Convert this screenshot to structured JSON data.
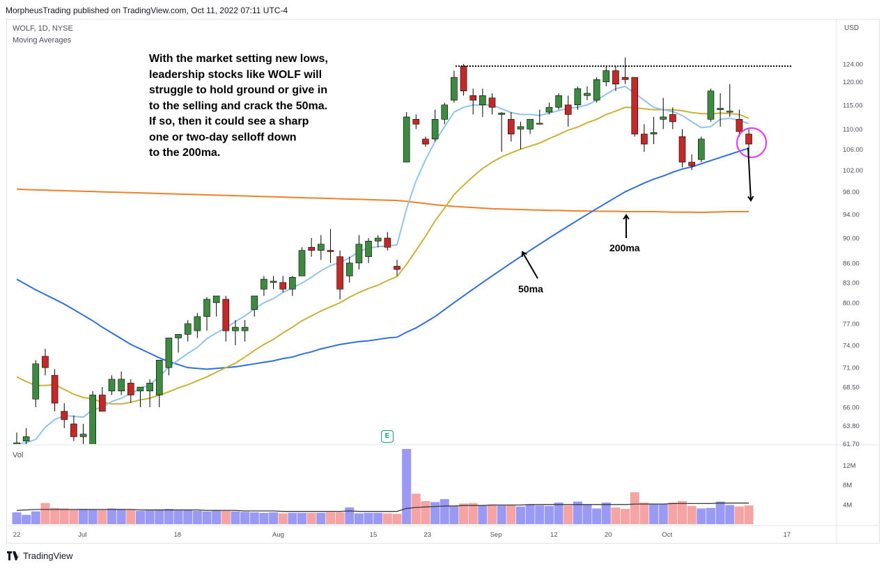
{
  "header": {
    "published": "MorpheusTrading published on TradingView.com, Oct 11, 2022 07:11 UTC-4"
  },
  "symbol_line": "WOLF, 1D, NYSE",
  "indicator_line": "Moving Averages",
  "currency": "USD",
  "annotation_lines": [
    "With the market setting new lows,",
    "leadership stocks like WOLF will",
    "struggle to hold ground or give in",
    "to the selling and crack the 50ma.",
    "If so, then it could see a sharp",
    "one or two-day selloff down",
    "to the 200ma."
  ],
  "labels": {
    "ma50": "50ma",
    "ma200": "200ma",
    "earnings": "E",
    "volume": "Vol"
  },
  "footer": {
    "brand": "TradingView"
  },
  "colors": {
    "up": "#3d8b40",
    "down": "#c62828",
    "ma10": "#90c4ec",
    "ma20": "#c9b23a",
    "ma50": "#2f6fdc",
    "ma200": "#f07f26",
    "vol_up": "#9a9af5",
    "vol_down": "#f5a3a3",
    "highlight": "#e040fb"
  },
  "chart_data": {
    "type": "candlestick",
    "symbol": "WOLF",
    "interval": "1D",
    "exchange": "NYSE",
    "y_ticks": [
      "124.00",
      "120.00",
      "115.00",
      "110.00",
      "106.00",
      "102.00",
      "98.00",
      "94.00",
      "90.00",
      "86.00",
      "83.00",
      "80.00",
      "77.00",
      "74.00",
      "71.00",
      "68.50",
      "66.00",
      "63.80",
      "61.70"
    ],
    "volume_ticks": [
      "12M",
      "8M",
      "4M"
    ],
    "x_ticks": [
      "22",
      "Jul",
      "18",
      "Aug",
      "15",
      "23",
      "Sep",
      "12",
      "20",
      "Oct",
      "17"
    ],
    "resistance_level": 124.0,
    "candles": [
      {
        "date": "2022-06-21",
        "o": 61.5,
        "h": 63,
        "l": 60.5,
        "c": 61.8
      },
      {
        "date": "2022-06-22",
        "o": 62,
        "h": 63.5,
        "l": 61,
        "c": 62.5
      },
      {
        "date": "2022-06-23",
        "o": 67,
        "h": 72,
        "l": 66,
        "c": 71.5
      },
      {
        "date": "2022-06-24",
        "o": 72.5,
        "h": 73.5,
        "l": 70,
        "c": 71
      },
      {
        "date": "2022-06-27",
        "o": 70,
        "h": 70.8,
        "l": 65.5,
        "c": 66.5
      },
      {
        "date": "2022-06-28",
        "o": 65.5,
        "h": 66.5,
        "l": 63.5,
        "c": 64.5
      },
      {
        "date": "2022-06-29",
        "o": 64,
        "h": 65,
        "l": 62,
        "c": 62.5
      },
      {
        "date": "2022-06-30",
        "o": 62.5,
        "h": 64,
        "l": 60,
        "c": 62.8
      },
      {
        "date": "2022-07-01",
        "o": 61,
        "h": 68,
        "l": 61,
        "c": 67.5
      },
      {
        "date": "2022-07-05",
        "o": 67.5,
        "h": 68.5,
        "l": 65.5,
        "c": 65.5
      },
      {
        "date": "2022-07-06",
        "o": 68,
        "h": 70,
        "l": 67.5,
        "c": 69.5
      },
      {
        "date": "2022-07-07",
        "o": 68,
        "h": 70.5,
        "l": 67.5,
        "c": 69.5
      },
      {
        "date": "2022-07-08",
        "o": 69,
        "h": 69.5,
        "l": 66.5,
        "c": 67.5
      },
      {
        "date": "2022-07-11",
        "o": 68,
        "h": 68.5,
        "l": 66,
        "c": 68.5
      },
      {
        "date": "2022-07-12",
        "o": 68,
        "h": 69.5,
        "l": 66,
        "c": 69
      },
      {
        "date": "2022-07-13",
        "o": 67.5,
        "h": 72,
        "l": 66,
        "c": 72
      },
      {
        "date": "2022-07-14",
        "o": 71,
        "h": 75,
        "l": 70,
        "c": 75
      },
      {
        "date": "2022-07-15",
        "o": 75,
        "h": 75.5,
        "l": 73,
        "c": 75.5
      },
      {
        "date": "2022-07-18",
        "o": 75.5,
        "h": 77.5,
        "l": 74.5,
        "c": 77
      },
      {
        "date": "2022-07-19",
        "o": 76,
        "h": 78.5,
        "l": 75,
        "c": 78
      },
      {
        "date": "2022-07-20",
        "o": 78,
        "h": 80.8,
        "l": 76,
        "c": 80.5
      },
      {
        "date": "2022-07-21",
        "o": 80,
        "h": 81,
        "l": 78,
        "c": 81
      },
      {
        "date": "2022-07-22",
        "o": 80.5,
        "h": 81,
        "l": 74.5,
        "c": 76
      },
      {
        "date": "2022-07-25",
        "o": 76,
        "h": 77.5,
        "l": 74,
        "c": 76.5
      },
      {
        "date": "2022-07-26",
        "o": 76,
        "h": 77.5,
        "l": 74.5,
        "c": 76.5
      },
      {
        "date": "2022-07-27",
        "o": 79,
        "h": 81,
        "l": 78,
        "c": 81
      },
      {
        "date": "2022-07-28",
        "o": 82,
        "h": 84,
        "l": 81,
        "c": 83.5
      },
      {
        "date": "2022-07-29",
        "o": 83,
        "h": 84,
        "l": 82,
        "c": 83.2
      },
      {
        "date": "2022-08-01",
        "o": 83,
        "h": 84,
        "l": 81.5,
        "c": 82
      },
      {
        "date": "2022-08-02",
        "o": 82,
        "h": 84,
        "l": 81,
        "c": 83.8
      },
      {
        "date": "2022-08-03",
        "o": 84,
        "h": 88.5,
        "l": 84,
        "c": 88
      },
      {
        "date": "2022-08-04",
        "o": 88.5,
        "h": 90,
        "l": 87,
        "c": 88
      },
      {
        "date": "2022-08-05",
        "o": 88,
        "h": 90.5,
        "l": 86.5,
        "c": 89
      },
      {
        "date": "2022-08-08",
        "o": 88,
        "h": 91.5,
        "l": 86,
        "c": 87.8
      },
      {
        "date": "2022-08-09",
        "o": 87,
        "h": 88,
        "l": 80.5,
        "c": 82
      },
      {
        "date": "2022-08-10",
        "o": 84,
        "h": 87,
        "l": 83,
        "c": 86
      },
      {
        "date": "2022-08-11",
        "o": 86,
        "h": 90.5,
        "l": 85,
        "c": 89
      },
      {
        "date": "2022-08-12",
        "o": 87,
        "h": 90,
        "l": 86,
        "c": 89.5
      },
      {
        "date": "2022-08-15",
        "o": 89.5,
        "h": 90.5,
        "l": 88.5,
        "c": 90
      },
      {
        "date": "2022-08-16",
        "o": 90,
        "h": 91,
        "l": 88,
        "c": 88.5
      },
      {
        "date": "2022-08-17",
        "o": 85.5,
        "h": 86.5,
        "l": 84,
        "c": 85
      },
      {
        "date": "2022-08-18",
        "o": 103.5,
        "h": 113.5,
        "l": 103.5,
        "c": 112.5
      },
      {
        "date": "2022-08-19",
        "o": 112,
        "h": 113,
        "l": 110,
        "c": 111
      },
      {
        "date": "2022-08-22",
        "o": 108,
        "h": 108.5,
        "l": 106.5,
        "c": 107
      },
      {
        "date": "2022-08-23",
        "o": 108,
        "h": 114,
        "l": 107.5,
        "c": 112
      },
      {
        "date": "2022-08-24",
        "o": 112,
        "h": 115.5,
        "l": 111,
        "c": 115
      },
      {
        "date": "2022-08-25",
        "o": 116,
        "h": 122.5,
        "l": 115.5,
        "c": 121
      },
      {
        "date": "2022-08-26",
        "o": 123.5,
        "h": 124,
        "l": 117,
        "c": 118
      },
      {
        "date": "2022-08-29",
        "o": 117,
        "h": 118.5,
        "l": 113,
        "c": 116
      },
      {
        "date": "2022-08-30",
        "o": 115,
        "h": 118.5,
        "l": 112.5,
        "c": 117
      },
      {
        "date": "2022-08-31",
        "o": 116.5,
        "h": 117.5,
        "l": 113,
        "c": 114.5
      },
      {
        "date": "2022-09-01",
        "o": 113,
        "h": 113.5,
        "l": 105.5,
        "c": 113.3
      },
      {
        "date": "2022-09-02",
        "o": 112,
        "h": 113.5,
        "l": 107.5,
        "c": 109
      },
      {
        "date": "2022-09-06",
        "o": 110,
        "h": 111.5,
        "l": 106,
        "c": 110.5
      },
      {
        "date": "2022-09-07",
        "o": 110,
        "h": 112,
        "l": 109,
        "c": 112
      },
      {
        "date": "2022-09-08",
        "o": 111,
        "h": 114,
        "l": 111,
        "c": 111.2
      },
      {
        "date": "2022-09-09",
        "o": 113.5,
        "h": 115.5,
        "l": 113,
        "c": 114.5
      },
      {
        "date": "2022-09-12",
        "o": 114.5,
        "h": 117.5,
        "l": 114,
        "c": 117
      },
      {
        "date": "2022-09-13",
        "o": 115,
        "h": 117,
        "l": 110.5,
        "c": 113
      },
      {
        "date": "2022-09-14",
        "o": 115,
        "h": 119,
        "l": 114,
        "c": 118.5
      },
      {
        "date": "2022-09-15",
        "o": 117,
        "h": 119,
        "l": 116,
        "c": 117.5
      },
      {
        "date": "2022-09-16",
        "o": 116,
        "h": 121,
        "l": 115.5,
        "c": 120.5
      },
      {
        "date": "2022-09-19",
        "o": 120,
        "h": 123.5,
        "l": 119,
        "c": 122.5
      },
      {
        "date": "2022-09-20",
        "o": 122.5,
        "h": 123.5,
        "l": 118,
        "c": 119.5
      },
      {
        "date": "2022-09-21",
        "o": 121,
        "h": 125.5,
        "l": 119.5,
        "c": 120.5
      },
      {
        "date": "2022-09-22",
        "o": 121,
        "h": 121,
        "l": 108.5,
        "c": 109
      },
      {
        "date": "2022-09-23",
        "o": 109,
        "h": 111,
        "l": 105.5,
        "c": 107
      },
      {
        "date": "2022-09-26",
        "o": 109,
        "h": 112.5,
        "l": 107,
        "c": 109.3
      },
      {
        "date": "2022-09-27",
        "o": 112,
        "h": 116.5,
        "l": 110,
        "c": 112.5
      },
      {
        "date": "2022-09-28",
        "o": 113,
        "h": 114.5,
        "l": 110,
        "c": 111.5
      },
      {
        "date": "2022-09-29",
        "o": 108.5,
        "h": 110,
        "l": 102.5,
        "c": 103.5
      },
      {
        "date": "2022-09-30",
        "o": 103.5,
        "h": 105,
        "l": 102,
        "c": 102.8
      },
      {
        "date": "2022-10-03",
        "o": 104,
        "h": 108.5,
        "l": 103.5,
        "c": 108
      },
      {
        "date": "2022-10-04",
        "o": 112,
        "h": 118.5,
        "l": 111.5,
        "c": 118
      },
      {
        "date": "2022-10-05",
        "o": 114,
        "h": 117.5,
        "l": 110.5,
        "c": 114.3
      },
      {
        "date": "2022-10-06",
        "o": 113.5,
        "h": 119.5,
        "l": 112.5,
        "c": 113.7
      },
      {
        "date": "2022-10-07",
        "o": 112,
        "h": 114,
        "l": 108.5,
        "c": 109.5
      },
      {
        "date": "2022-10-10",
        "o": 109,
        "h": 110,
        "l": 104.5,
        "c": 107
      }
    ],
    "ma10": [
      61.7,
      61.8,
      62.2,
      63.6,
      64.5,
      65,
      64.9,
      64.8,
      65.7,
      66,
      66.7,
      67.1,
      67.7,
      68.3,
      68.8,
      69.8,
      71.1,
      72,
      72.9,
      73.7,
      74.9,
      75.7,
      76.4,
      77.3,
      78.1,
      79.1,
      80,
      80.6,
      81.5,
      82.2,
      82.9,
      83.8,
      84.8,
      85.6,
      86.1,
      86.8,
      87.8,
      88.4,
      88.6,
      88.7,
      88.9,
      95,
      100,
      104,
      107.5,
      110.5,
      113.5,
      114.5,
      115,
      115,
      115,
      114.2,
      113.4,
      113,
      113,
      112.8,
      113.3,
      113.8,
      114.3,
      114.5,
      115,
      116,
      117.3,
      118.5,
      119,
      117.5,
      116,
      114.5,
      114,
      113.6,
      112.8,
      111.5,
      110.3,
      110.5,
      112,
      112.2,
      111.8,
      111.1
    ],
    "ma20": [
      69.8,
      69.2,
      68.7,
      68.7,
      68.8,
      68.2,
      67.6,
      67.2,
      67,
      66.6,
      66.4,
      66.4,
      66.6,
      66.9,
      67.1,
      67.5,
      67.9,
      68.4,
      68.8,
      69.3,
      69.8,
      70.4,
      71,
      71.6,
      72.4,
      73.3,
      74.1,
      74.8,
      75.7,
      76.5,
      77.4,
      78.1,
      78.8,
      79.4,
      80,
      80.8,
      81.5,
      82.1,
      82.6,
      83.3,
      83.9,
      85.8,
      88,
      90.3,
      92.9,
      95.1,
      97.5,
      99.2,
      100.8,
      102.3,
      103.5,
      104.5,
      105.3,
      106,
      106.6,
      107.2,
      108.1,
      108.9,
      109.8,
      110.4,
      111.3,
      112,
      113,
      113.7,
      114.5,
      114.4,
      114.2,
      114,
      114,
      114,
      113.8,
      113.4,
      113.2,
      113.1,
      113.3,
      113.2,
      113,
      112.2
    ],
    "ma50": [
      83.5,
      82.7,
      81.9,
      81.2,
      80.5,
      79.8,
      79,
      78.2,
      77.4,
      76.5,
      75.7,
      74.9,
      74.1,
      73.5,
      72.9,
      72.3,
      71.8,
      71.4,
      71,
      70.9,
      70.8,
      70.9,
      71,
      71.1,
      71.3,
      71.5,
      71.7,
      71.9,
      72.2,
      72.4,
      72.8,
      73.1,
      73.5,
      73.8,
      74.1,
      74.3,
      74.5,
      74.6,
      74.8,
      75,
      75.1,
      75.8,
      76.4,
      77.2,
      78,
      79,
      80,
      81,
      82,
      83,
      84,
      85,
      86,
      87,
      88,
      89,
      90,
      91,
      92,
      93,
      94,
      95,
      96,
      97,
      98,
      98.8,
      99.6,
      100.3,
      100.9,
      101.6,
      102.2,
      102.6,
      103.2,
      103.8,
      104.4,
      105,
      105.6,
      106.2
    ],
    "ma200": [
      98.5,
      98.4,
      98.35,
      98.3,
      98.25,
      98.2,
      98.15,
      98.1,
      98.05,
      98,
      97.95,
      97.9,
      97.85,
      97.8,
      97.75,
      97.7,
      97.65,
      97.6,
      97.55,
      97.5,
      97.45,
      97.4,
      97.35,
      97.3,
      97.25,
      97.2,
      97.15,
      97.1,
      97.05,
      97,
      96.95,
      96.9,
      96.85,
      96.8,
      96.75,
      96.7,
      96.65,
      96.6,
      96.55,
      96.5,
      96.45,
      96.3,
      96.1,
      95.9,
      95.7,
      95.55,
      95.4,
      95.3,
      95.2,
      95.1,
      95,
      94.95,
      94.9,
      94.85,
      94.8,
      94.75,
      94.7,
      94.7,
      94.65,
      94.6,
      94.6,
      94.55,
      94.55,
      94.55,
      94.5,
      94.5,
      94.5,
      94.5,
      94.45,
      94.4,
      94.4,
      94.4,
      94.35,
      94.4,
      94.45,
      94.5,
      94.5,
      94.5
    ],
    "volume": [
      2.4,
      1.9,
      2.6,
      4.3,
      3.3,
      3.2,
      2.9,
      3.1,
      3,
      2.9,
      3.2,
      3.1,
      2.9,
      2.7,
      2.8,
      3,
      3.1,
      2.8,
      2.9,
      2.7,
      2.6,
      2.8,
      2.7,
      2.6,
      2.5,
      2.4,
      2.3,
      2.4,
      2.2,
      2.3,
      2.3,
      2.3,
      2.3,
      2.4,
      2.4,
      3.4,
      2.2,
      2.3,
      2.3,
      2.2,
      2.1,
      15.6,
      6.2,
      4.7,
      4.5,
      5.1,
      3.6,
      4.2,
      4.3,
      3.9,
      4,
      3.8,
      3.9,
      3.6,
      3.9,
      3.8,
      3.7,
      4.4,
      3.8,
      4.6,
      3.9,
      3.2,
      4.4,
      3.4,
      3.1,
      6.5,
      4.4,
      4.2,
      4.1,
      4.4,
      4.7,
      3.7,
      3.2,
      3.3,
      4.6,
      3.9,
      3.6,
      3.8
    ],
    "volume_ma": [
      2.8,
      2.9,
      3,
      3,
      3,
      3,
      3,
      3,
      3,
      3,
      3,
      3,
      3,
      2.9,
      2.9,
      2.9,
      2.9,
      2.9,
      2.9,
      2.9,
      2.8,
      2.8,
      2.8,
      2.8,
      2.7,
      2.7,
      2.7,
      2.7,
      2.6,
      2.6,
      2.6,
      2.6,
      2.6,
      2.6,
      2.6,
      2.7,
      2.6,
      2.6,
      2.6,
      2.6,
      2.6,
      3.2,
      3.4,
      3.5,
      3.6,
      3.7,
      3.7,
      3.8,
      3.8,
      3.8,
      3.9,
      3.9,
      3.9,
      3.9,
      4,
      4,
      4,
      4,
      4,
      4,
      4,
      4,
      4,
      4,
      4,
      4.1,
      4.1,
      4.1,
      4.1,
      4.2,
      4.2,
      4.2,
      4.2,
      4.2,
      4.3,
      4.3,
      4.3,
      4.3
    ]
  }
}
